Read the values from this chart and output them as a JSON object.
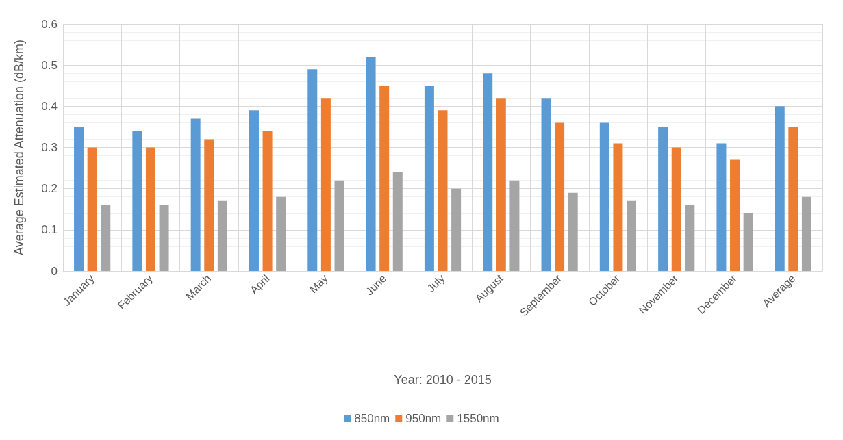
{
  "chart_data": {
    "type": "bar",
    "xlabel": "Year: 2010 - 2015",
    "ylabel": "Average Estimated Attenuation (dB/km)",
    "categories": [
      "January",
      "February",
      "March",
      "April",
      "May",
      "June",
      "July",
      "August",
      "September",
      "October",
      "November",
      "December",
      "Average"
    ],
    "series": [
      {
        "name": "850nm",
        "color": "#5b9bd5",
        "values": [
          0.35,
          0.34,
          0.37,
          0.39,
          0.49,
          0.52,
          0.45,
          0.48,
          0.42,
          0.36,
          0.35,
          0.31,
          0.4
        ]
      },
      {
        "name": "950nm",
        "color": "#ed7d31",
        "values": [
          0.3,
          0.3,
          0.32,
          0.34,
          0.42,
          0.45,
          0.39,
          0.42,
          0.36,
          0.31,
          0.3,
          0.27,
          0.35
        ]
      },
      {
        "name": "1550nm",
        "color": "#a5a5a5",
        "values": [
          0.16,
          0.16,
          0.17,
          0.18,
          0.22,
          0.24,
          0.2,
          0.22,
          0.19,
          0.17,
          0.16,
          0.14,
          0.18
        ]
      }
    ],
    "ylim": [
      0,
      0.6
    ],
    "yticks": [
      0,
      0.1,
      0.2,
      0.3,
      0.4,
      0.5,
      0.6
    ],
    "grid": true,
    "legend": "bottom"
  }
}
